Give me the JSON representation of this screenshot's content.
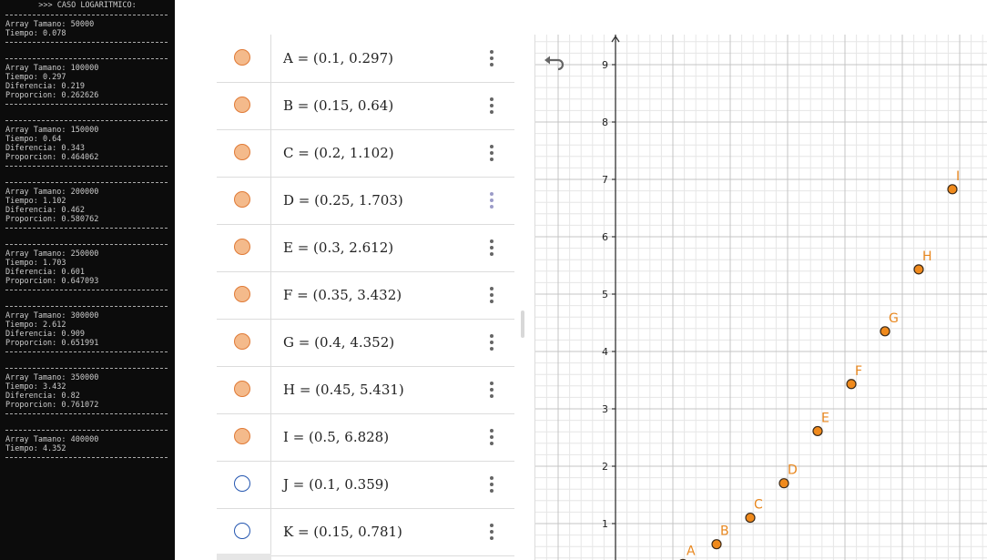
{
  "console": {
    "title": ">>> CASO LOGARITMICO:",
    "blocks": [
      {
        "lines": [
          "Array Tamano: 50000",
          "Tiempo: 0.078"
        ]
      },
      {
        "lines": [
          "Array Tamano: 100000",
          "Tiempo: 0.297",
          "Diferencia: 0.219",
          "Proporcion: 0.262626"
        ]
      },
      {
        "lines": [
          "Array Tamano: 150000",
          "Tiempo: 0.64",
          "Diferencia: 0.343",
          "Proporcion: 0.464062"
        ]
      },
      {
        "lines": [
          "Array Tamano: 200000",
          "Tiempo: 1.102",
          "Diferencia: 0.462",
          "Proporcion: 0.580762"
        ]
      },
      {
        "lines": [
          "Array Tamano: 250000",
          "Tiempo: 1.703",
          "Diferencia: 0.601",
          "Proporcion: 0.647093"
        ]
      },
      {
        "lines": [
          "Array Tamano: 300000",
          "Tiempo: 2.612",
          "Diferencia: 0.909",
          "Proporcion: 0.651991"
        ]
      },
      {
        "lines": [
          "Array Tamano: 350000",
          "Tiempo: 3.432",
          "Diferencia: 0.82",
          "Proporcion: 0.761072"
        ]
      },
      {
        "lines": [
          "Array Tamano: 400000",
          "Tiempo: 4.352"
        ]
      }
    ]
  },
  "algebra": {
    "items": [
      {
        "label": "A = (0.1, 0.297)",
        "filled": true
      },
      {
        "label": "B = (0.15, 0.64)",
        "filled": true
      },
      {
        "label": "C = (0.2, 1.102)",
        "filled": true
      },
      {
        "label": "D = (0.25, 1.703)",
        "filled": true
      },
      {
        "label": "E = (0.3, 2.612)",
        "filled": true
      },
      {
        "label": "F = (0.35, 3.432)",
        "filled": true
      },
      {
        "label": "G = (0.4, 4.352)",
        "filled": true
      },
      {
        "label": "H = (0.45, 5.431)",
        "filled": true
      },
      {
        "label": "I = (0.5, 6.828)",
        "filled": true
      },
      {
        "label": "J = (0.1, 0.359)",
        "filled": false
      },
      {
        "label": "K = (0.15, 0.781)",
        "filled": false
      }
    ]
  },
  "graphics": {
    "y_ticks": [
      "1",
      "2",
      "3",
      "4",
      "5",
      "6",
      "7",
      "8",
      "9"
    ],
    "points": [
      {
        "name": "A",
        "x": 0.1,
        "y": 0.297
      },
      {
        "name": "B",
        "x": 0.15,
        "y": 0.64
      },
      {
        "name": "C",
        "x": 0.2,
        "y": 1.102
      },
      {
        "name": "D",
        "x": 0.25,
        "y": 1.703
      },
      {
        "name": "E",
        "x": 0.3,
        "y": 2.612
      },
      {
        "name": "F",
        "x": 0.35,
        "y": 3.432
      },
      {
        "name": "G",
        "x": 0.4,
        "y": 4.352
      },
      {
        "name": "H",
        "x": 0.45,
        "y": 5.431
      },
      {
        "name": "I",
        "x": 0.5,
        "y": 6.828
      }
    ],
    "point_color": "#f08a1c",
    "label_color": "#e8871e"
  }
}
